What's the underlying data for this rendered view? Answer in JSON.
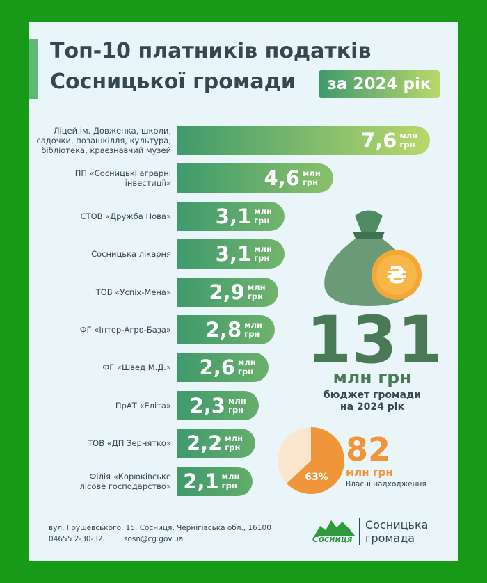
{
  "chart_data": [
    {
      "type": "hbar",
      "title": "Топ-10 платників податків\nСосницької громади",
      "subtitle": "за 2024 рік",
      "unit": "млн\nгрн",
      "categories": [
        "Ліцей ім. Довженка, школи,\nсадочки, позашкілля, культура,\nбібліотека, краєзнавчий музей",
        "ПП «Сосницькі аграрні\nінвестиції»",
        "СТОВ «Дружба Нова»",
        "Сосницька лікарня",
        "ТОВ «Успіх-Мена»",
        "ФГ «Інтер-Агро-База»",
        "ФГ «Швед М.Д.»",
        "ПрАТ «Еліта»",
        "ТОВ «ДП Зернятко»",
        "Філія «Корюківське\nлісове господарство»"
      ],
      "values": [
        7.6,
        4.6,
        3.1,
        3.1,
        2.9,
        2.8,
        2.6,
        2.3,
        2.2,
        2.1
      ],
      "value_labels": [
        "7,6",
        "4,6",
        "3,1",
        "3,1",
        "2,9",
        "2,8",
        "2,6",
        "2,3",
        "2,2",
        "2,1"
      ],
      "color": [
        "#3f9a6c",
        "#b9d86b"
      ]
    },
    {
      "type": "pie",
      "values": [
        63
      ],
      "value_labels": [
        "63%"
      ],
      "color": "#f0963a",
      "rest_color": "#fbe6cf",
      "total": "82",
      "unit": "млн грн",
      "caption": "Власні надходження"
    }
  ],
  "budget": {
    "total": "131",
    "unit": "млн грн",
    "caption": "бюджет громади\nна 2024 рік"
  },
  "footer": {
    "address": "вул. Грушевського, 15, Сосниця, Чернігівська обл., 16100",
    "phone": "04655 2-30-32",
    "email": "sosn@cg.gov.ua",
    "logo_name": "Сосниця",
    "org": "Сосницька\nгромада"
  }
}
